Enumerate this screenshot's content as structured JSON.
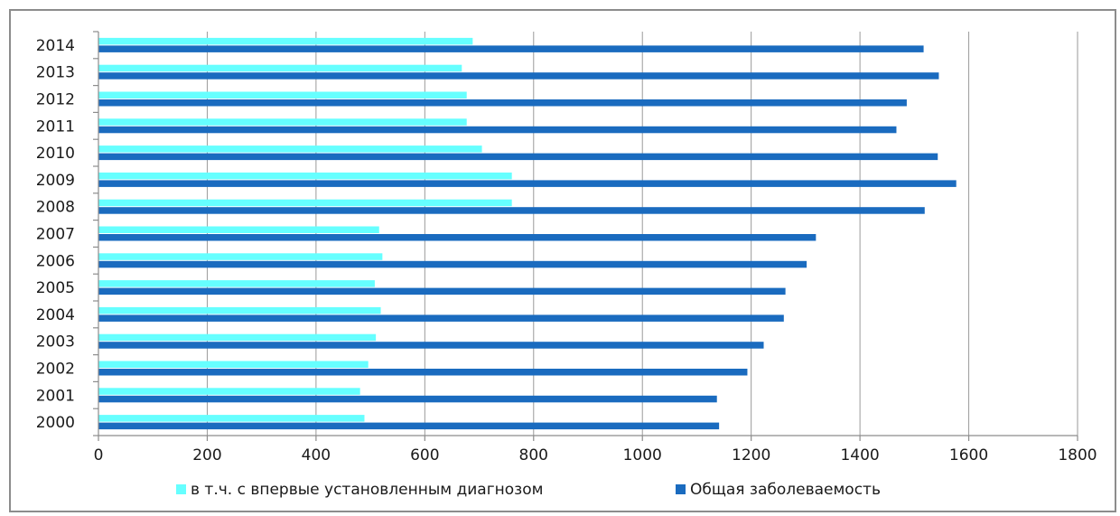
{
  "chart_data": {
    "type": "bar",
    "orientation": "horizontal",
    "categories": [
      "2000",
      "2001",
      "2002",
      "2003",
      "2004",
      "2005",
      "2006",
      "2007",
      "2008",
      "2009",
      "2010",
      "2011",
      "2012",
      "2013",
      "2014"
    ],
    "series": [
      {
        "name": "в т.ч. с  впервые установленным диагнозом",
        "color": "#66ffff",
        "values": [
          489,
          481,
          496,
          510,
          519,
          508,
          522,
          516,
          760,
          760,
          705,
          677,
          677,
          668,
          688
        ]
      },
      {
        "name": "Общая заболеваемость",
        "color": "#1a6bbf",
        "values": [
          1141,
          1137,
          1193,
          1223,
          1260,
          1263,
          1302,
          1319,
          1519,
          1577,
          1543,
          1467,
          1486,
          1545,
          1517
        ]
      }
    ],
    "xlim": [
      0,
      1800
    ],
    "xticks": [
      0,
      200,
      400,
      600,
      800,
      1000,
      1200,
      1400,
      1600,
      1800
    ],
    "grid": true,
    "legend_position": "bottom",
    "title": "",
    "xlabel": "",
    "ylabel": ""
  }
}
